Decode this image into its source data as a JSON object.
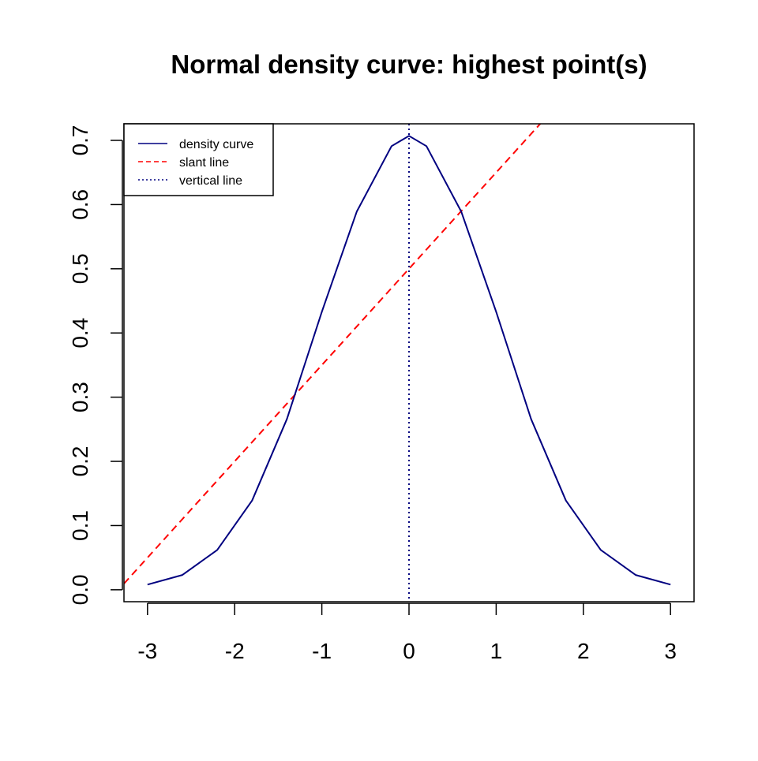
{
  "chart_data": {
    "type": "line",
    "title": "Normal density curve: highest point(s)",
    "xlabel": "",
    "ylabel": "",
    "xlim": [
      -3.27,
      3.27
    ],
    "ylim": [
      -0.0186,
      0.7258
    ],
    "x_ticks": [
      -3,
      -2,
      -1,
      0,
      1,
      2,
      3
    ],
    "x_tick_labels": [
      "-3",
      "-2",
      "-1",
      "0",
      "1",
      "2",
      "3"
    ],
    "y_ticks": [
      0.0,
      0.1,
      0.2,
      0.3,
      0.4,
      0.5,
      0.6,
      0.7
    ],
    "y_tick_labels": [
      "0.0",
      "0.1",
      "0.2",
      "0.3",
      "0.4",
      "0.5",
      "0.6",
      "0.7"
    ],
    "grid": false,
    "legend_position": "top-left",
    "legend": [
      {
        "label": "density curve",
        "color": "#000080",
        "style": "solid"
      },
      {
        "label": "slant line",
        "color": "#ff0000",
        "style": "dashed"
      },
      {
        "label": "vertical line",
        "color": "#000080",
        "style": "dotted"
      }
    ],
    "series": [
      {
        "name": "density curve",
        "color": "#000080",
        "style": "solid",
        "x": [
          -3.0,
          -2.6,
          -2.2,
          -1.8,
          -1.4,
          -1.0,
          -0.6,
          -0.2,
          0.0,
          0.2,
          0.6,
          1.0,
          1.4,
          1.8,
          2.2,
          2.6,
          3.0
        ],
        "y": [
          0.008,
          0.023,
          0.062,
          0.139,
          0.266,
          0.433,
          0.589,
          0.691,
          0.707,
          0.691,
          0.589,
          0.433,
          0.266,
          0.139,
          0.062,
          0.023,
          0.008
        ]
      }
    ],
    "reference_lines": [
      {
        "name": "slant line",
        "type": "abline",
        "intercept": 0.5,
        "slope": 0.15,
        "color": "#ff0000",
        "style": "dashed"
      },
      {
        "name": "vertical line",
        "type": "vline",
        "x": 0,
        "color": "#000080",
        "style": "dotted"
      }
    ]
  }
}
